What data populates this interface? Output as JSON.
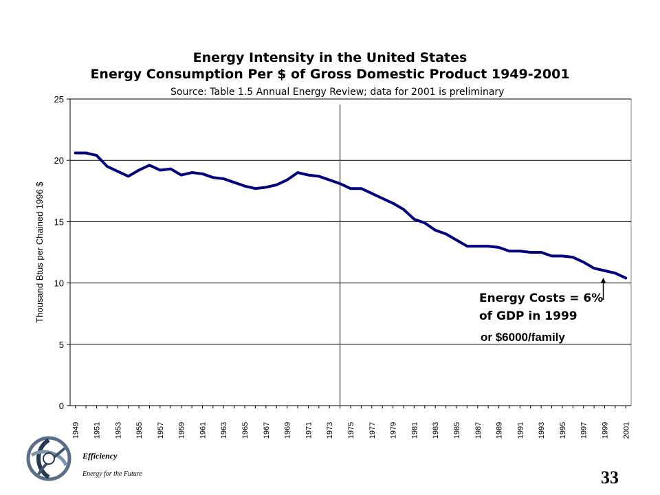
{
  "chart_data": {
    "type": "line",
    "title": "Energy Intensity in the United States",
    "subtitle": "Energy Consumption Per $ of Gross Domestic Product 1949-2001",
    "source": "Source: Table 1.5 Annual Energy Review; data for 2001 is preliminary",
    "ylabel": "Thousand Btus per Chained 1996 $",
    "xlabel": "",
    "ylim": [
      0,
      25
    ],
    "yticks": [
      0,
      5,
      10,
      15,
      20,
      25
    ],
    "grid": true,
    "vertical_marker_year": 1974,
    "x": [
      1949,
      1950,
      1951,
      1952,
      1953,
      1954,
      1955,
      1956,
      1957,
      1958,
      1959,
      1960,
      1961,
      1962,
      1963,
      1964,
      1965,
      1966,
      1967,
      1968,
      1969,
      1970,
      1971,
      1972,
      1973,
      1974,
      1975,
      1976,
      1977,
      1978,
      1979,
      1980,
      1981,
      1982,
      1983,
      1984,
      1985,
      1986,
      1987,
      1988,
      1989,
      1990,
      1991,
      1992,
      1993,
      1994,
      1995,
      1996,
      1997,
      1998,
      1999,
      2000,
      2001
    ],
    "xtick_labels": [
      "1949",
      "1951",
      "1953",
      "1955",
      "1957",
      "1959",
      "1961",
      "1963",
      "1965",
      "1967",
      "1969",
      "1971",
      "1973",
      "1975",
      "1977",
      "1979",
      "1981",
      "1983",
      "1985",
      "1987",
      "1989",
      "1991",
      "1993",
      "1995",
      "1997",
      "1999",
      "2001"
    ],
    "series": [
      {
        "values": [
          20.6,
          20.6,
          20.4,
          19.5,
          19.1,
          18.7,
          19.2,
          19.6,
          19.2,
          19.3,
          18.8,
          19.0,
          18.9,
          18.6,
          18.5,
          18.2,
          17.9,
          17.7,
          17.8,
          18.0,
          18.4,
          19.0,
          18.8,
          18.7,
          18.4,
          18.1,
          17.7,
          17.7,
          17.3,
          16.9,
          16.5,
          16.0,
          15.2,
          14.9,
          14.3,
          14.0,
          13.5,
          13.0,
          13.0,
          13.0,
          12.9,
          12.6,
          12.6,
          12.5,
          12.5,
          12.2,
          12.2,
          12.1,
          11.7,
          11.2,
          11.0,
          10.8,
          10.4
        ],
        "color": "#000080"
      }
    ],
    "annotations": [
      {
        "line1": "Energy Costs = 6%",
        "line2": "of GDP in 1999",
        "line3": "or $6000/family",
        "arrow_year": 1999
      }
    ]
  },
  "footer": {
    "tagline1": "Efficiency",
    "tagline2": "Energy for the Future",
    "page_number": "33"
  },
  "colors": {
    "line": "#000080",
    "grid": "#000000",
    "plot_bg": "#ffffff"
  },
  "logo_icon": "swirl-logo-icon"
}
